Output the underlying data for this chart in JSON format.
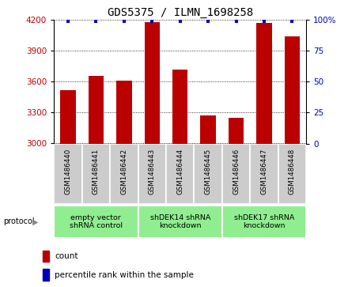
{
  "title": "GDS5375 / ILMN_1698258",
  "samples": [
    "GSM1486440",
    "GSM1486441",
    "GSM1486442",
    "GSM1486443",
    "GSM1486444",
    "GSM1486445",
    "GSM1486446",
    "GSM1486447",
    "GSM1486448"
  ],
  "counts": [
    3520,
    3660,
    3610,
    4180,
    3720,
    3270,
    3250,
    4170,
    4040
  ],
  "percentile_y": [
    99,
    99,
    99,
    99,
    99,
    99,
    99,
    99,
    99
  ],
  "ylim_left": [
    3000,
    4200
  ],
  "ylim_right": [
    0,
    100
  ],
  "yticks_left": [
    3000,
    3300,
    3600,
    3900,
    4200
  ],
  "yticks_right": [
    0,
    25,
    50,
    75,
    100
  ],
  "bar_color": "#BB0000",
  "dot_color": "#0000BB",
  "groups": [
    {
      "label": "empty vector\nshRNA control",
      "start": 0,
      "end": 3,
      "color": "#90EE90"
    },
    {
      "label": "shDEK14 shRNA\nknockdown",
      "start": 3,
      "end": 6,
      "color": "#90EE90"
    },
    {
      "label": "shDEK17 shRNA\nknockdown",
      "start": 6,
      "end": 9,
      "color": "#90EE90"
    }
  ],
  "protocol_label": "protocol",
  "legend_count_label": "count",
  "legend_percentile_label": "percentile rank within the sample",
  "tick_area_color": "#cccccc",
  "bar_width": 0.55
}
